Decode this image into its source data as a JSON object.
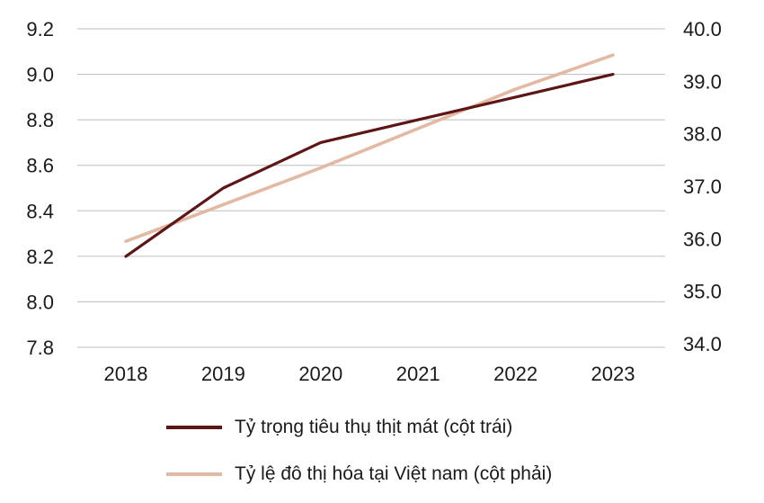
{
  "chart_data": {
    "type": "line",
    "x": [
      "2018",
      "2019",
      "2020",
      "2021",
      "2022",
      "2023"
    ],
    "series": [
      {
        "name": "Tỷ trọng tiêu thụ thịt mát (cột trái)",
        "axis": "left",
        "color": "#5e1516",
        "values": [
          8.2,
          8.5,
          8.7,
          8.8,
          8.9,
          9.0
        ]
      },
      {
        "name": "Tỷ lệ đô thị hóa tại Việt nam (cột phải)",
        "axis": "right",
        "color": "#e3b9a3",
        "values": [
          35.95,
          36.65,
          37.35,
          38.1,
          38.85,
          39.5
        ]
      }
    ],
    "y_left": {
      "min": 7.8,
      "max": 9.2,
      "step": 0.2,
      "ticks": [
        "7.8",
        "8.0",
        "8.2",
        "8.4",
        "8.6",
        "8.8",
        "9.0",
        "9.2"
      ]
    },
    "y_right": {
      "min": 34.0,
      "max": 40.0,
      "step": 1.0,
      "ticks": [
        "34.0",
        "35.0",
        "36.0",
        "37.0",
        "38.0",
        "39.0",
        "40.0"
      ]
    },
    "grid": true,
    "legend": "bottom"
  }
}
